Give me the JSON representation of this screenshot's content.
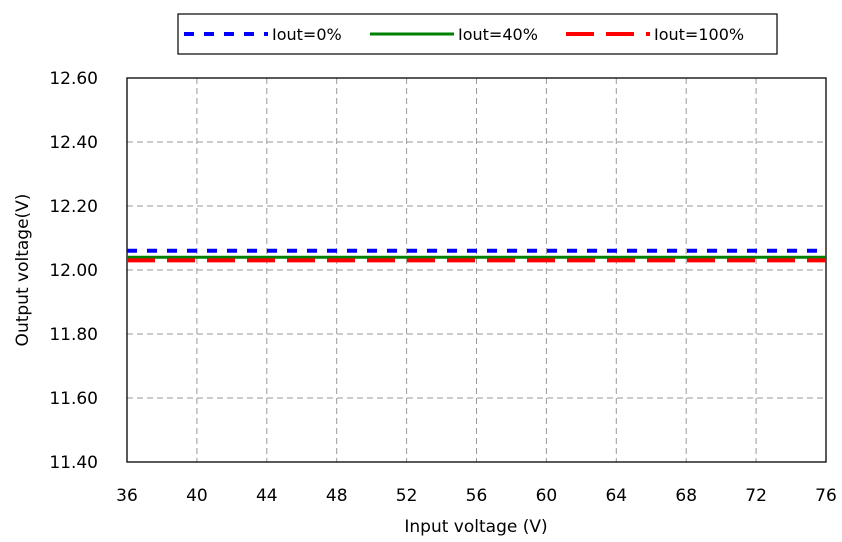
{
  "chart_data": {
    "type": "line",
    "title": "",
    "xlabel": "Input voltage (V)",
    "ylabel": "Output voltage(V)",
    "xlim": [
      36,
      76
    ],
    "ylim": [
      11.4,
      12.6
    ],
    "x_ticks": [
      "36",
      "40",
      "44",
      "48",
      "52",
      "56",
      "60",
      "64",
      "68",
      "72",
      "76"
    ],
    "y_ticks": [
      "12.60",
      "12.40",
      "12.20",
      "12.00",
      "11.80",
      "11.60",
      "11.40"
    ],
    "grid": true,
    "legend_position": "top",
    "x": [
      36,
      40,
      44,
      48,
      52,
      56,
      60,
      64,
      68,
      72,
      76
    ],
    "series": [
      {
        "name": "Iout=0%",
        "color": "#0000ff",
        "style": "dotted",
        "values": [
          12.06,
          12.06,
          12.06,
          12.06,
          12.06,
          12.06,
          12.06,
          12.06,
          12.06,
          12.06,
          12.06
        ]
      },
      {
        "name": "Iout=40%",
        "color": "#008000",
        "style": "solid",
        "values": [
          12.04,
          12.04,
          12.04,
          12.04,
          12.04,
          12.04,
          12.04,
          12.04,
          12.04,
          12.04,
          12.04
        ]
      },
      {
        "name": "Iout=100%",
        "color": "#ff0000",
        "style": "dashed",
        "values": [
          12.03,
          12.03,
          12.03,
          12.03,
          12.03,
          12.03,
          12.03,
          12.03,
          12.03,
          12.03,
          12.03
        ]
      }
    ]
  }
}
